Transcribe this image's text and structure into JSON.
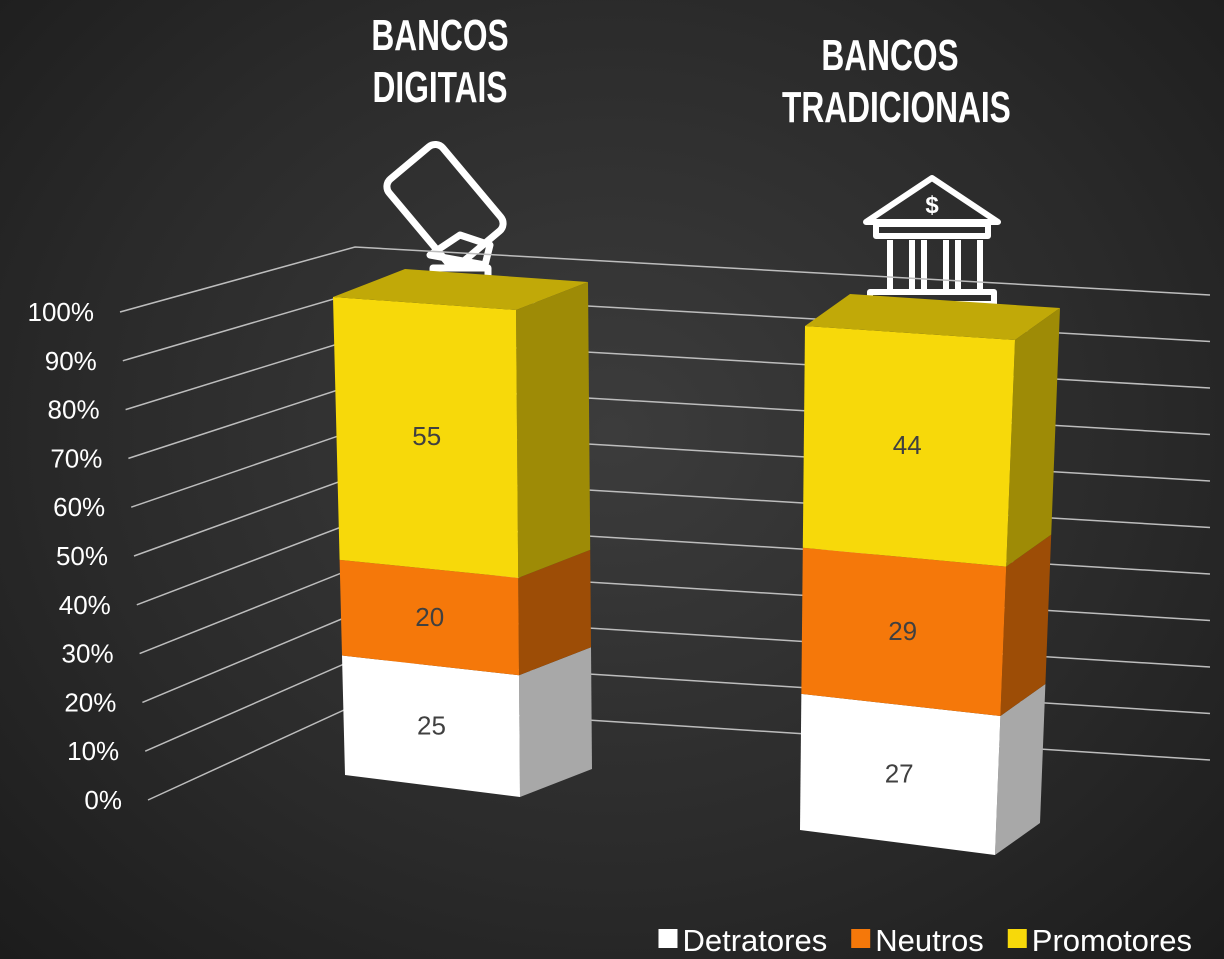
{
  "chart_data": {
    "type": "bar",
    "stacked": true,
    "three_d": true,
    "categories": [
      "BANCOS DIGITAIS",
      "BANCOS TRADICIONAIS"
    ],
    "series": [
      {
        "name": "Detratores",
        "color": "#ffffff",
        "values": [
          25,
          27
        ]
      },
      {
        "name": "Neutros",
        "color": "#f5780a",
        "values": [
          20,
          29
        ]
      },
      {
        "name": "Promotores",
        "color": "#f7d90a",
        "values": [
          55,
          44
        ]
      }
    ],
    "ylim": [
      0,
      100
    ],
    "yticks": [
      {
        "value": 0,
        "label": "0%"
      },
      {
        "value": 10,
        "label": "10%"
      },
      {
        "value": 20,
        "label": "20%"
      },
      {
        "value": 30,
        "label": "30%"
      },
      {
        "value": 40,
        "label": "40%"
      },
      {
        "value": 50,
        "label": "50%"
      },
      {
        "value": 60,
        "label": "60%"
      },
      {
        "value": 70,
        "label": "70%"
      },
      {
        "value": 80,
        "label": "80%"
      },
      {
        "value": 90,
        "label": "90%"
      },
      {
        "value": 100,
        "label": "100%"
      }
    ],
    "grid": true,
    "legend": "bottom-right"
  }
}
